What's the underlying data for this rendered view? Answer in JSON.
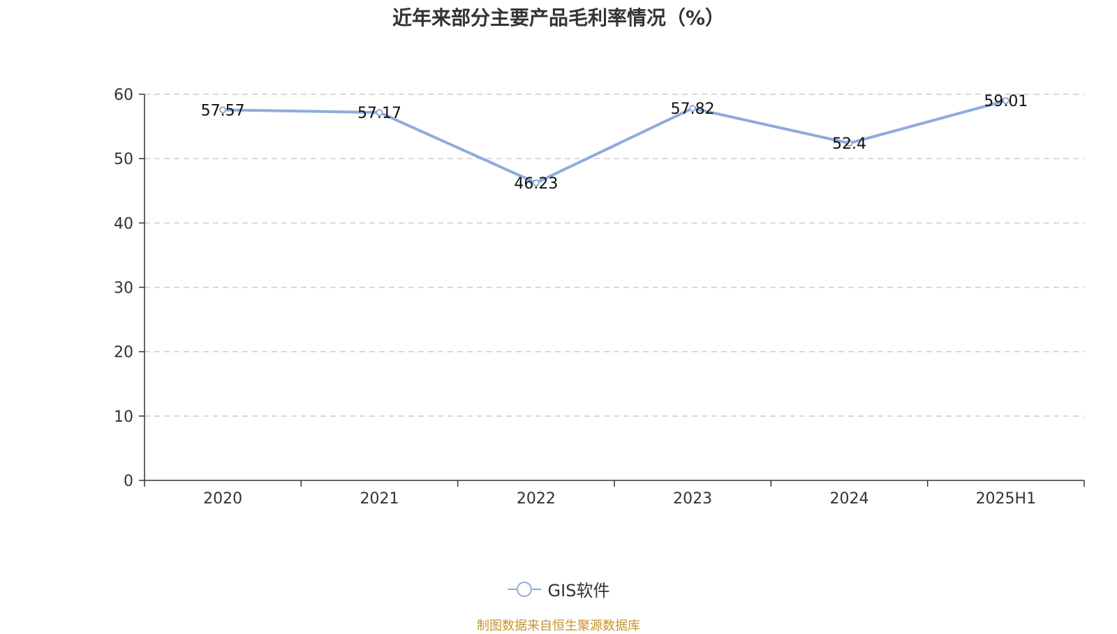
{
  "title": "近年来部分主要产品毛利率情况（%）",
  "source": "制图数据来自恒生聚源数据库",
  "legend": {
    "label": "GIS软件"
  },
  "colors": {
    "series": "#8eacdb",
    "axis": "#333333",
    "grid": "#cccccc",
    "source": "#c8932b"
  },
  "chart_data": {
    "type": "line",
    "categories": [
      "2020",
      "2021",
      "2022",
      "2023",
      "2024",
      "2025H1"
    ],
    "series": [
      {
        "name": "GIS软件",
        "values": [
          57.57,
          57.17,
          46.23,
          57.82,
          52.4,
          59.01
        ]
      }
    ],
    "ylim": [
      0,
      60
    ],
    "yticks": [
      0,
      10,
      20,
      30,
      40,
      50,
      60
    ],
    "grid": true,
    "legend_position": "bottom"
  }
}
